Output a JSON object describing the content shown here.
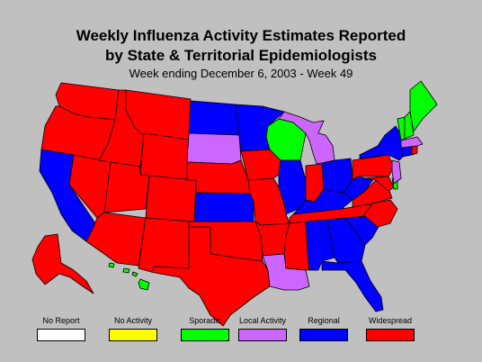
{
  "title_line1": "Weekly Influenza Activity Estimates Reported",
  "title_line2": "by State & Territorial Epidemiologists",
  "subtitle": "Week ending December 6, 2003 - Week 49",
  "legend": [
    {
      "label": "No Report",
      "color": "#ffffff"
    },
    {
      "label": "No Activity",
      "color": "#ffff00"
    },
    {
      "label": "Sporadic",
      "color": "#00ff00"
    },
    {
      "label": "Local Activity",
      "color": "#cc66ff"
    },
    {
      "label": "Regional",
      "color": "#0000ff"
    },
    {
      "label": "Widespread",
      "color": "#ff0000"
    }
  ],
  "colors": {
    "widespread": "#ff0000",
    "regional": "#0000ff",
    "local": "#cc66ff",
    "sporadic": "#00ff00"
  },
  "states": {
    "WA": "widespread",
    "OR": "widespread",
    "ID": "widespread",
    "MT": "widespread",
    "WY": "widespread",
    "NV": "widespread",
    "UT": "widespread",
    "CO": "widespread",
    "AZ": "widespread",
    "NM": "widespread",
    "TX": "widespread",
    "OK": "widespread",
    "NE": "widespread",
    "IA": "widespread",
    "MO": "widespread",
    "AR": "widespread",
    "MS": "widespread",
    "IN": "widespread",
    "TN": "widespread",
    "NC": "widespread",
    "VA": "widespread",
    "PA": "widespread",
    "MD": "widespread",
    "RI": "widespread",
    "AK": "widespread",
    "CA": "regional",
    "ND": "regional",
    "MN": "regional",
    "KS": "regional",
    "IL": "regional",
    "KY": "regional",
    "OH": "regional",
    "WV": "regional",
    "AL": "regional",
    "GA": "regional",
    "SC": "regional",
    "FL": "regional",
    "NY": "regional",
    "CT": "regional",
    "SD": "local",
    "MI": "local",
    "LA": "local",
    "NJ": "local",
    "MA": "local",
    "WI": "sporadic",
    "ME": "sporadic",
    "NH": "sporadic",
    "VT": "sporadic",
    "DE": "sporadic",
    "HI": "sporadic"
  }
}
